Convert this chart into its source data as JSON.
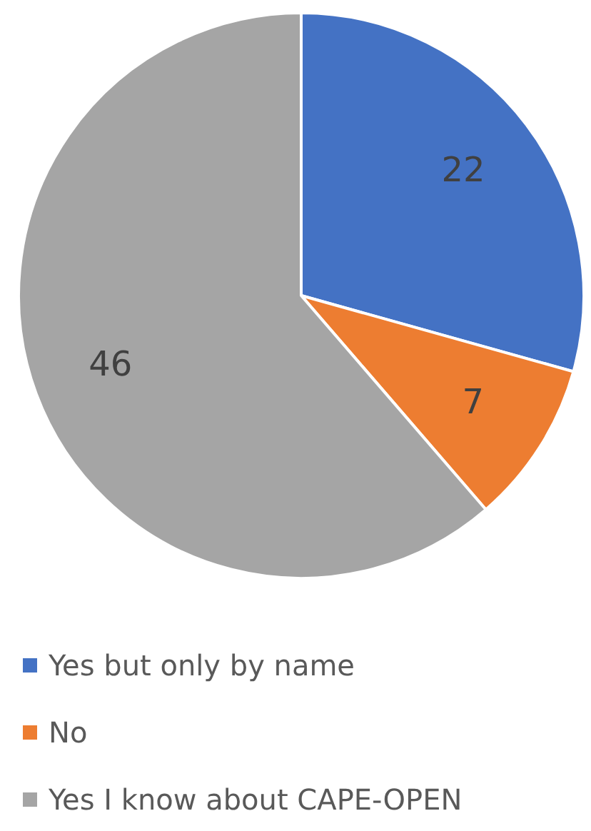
{
  "chart_data": {
    "type": "pie",
    "categories": [
      "Yes but only by name",
      "No",
      "Yes I know about CAPE-OPEN"
    ],
    "values": [
      22,
      7,
      46
    ],
    "colors": [
      "#4472c4",
      "#ed7d31",
      "#a5a5a5"
    ],
    "data_labels": true,
    "legend": "bottom"
  }
}
